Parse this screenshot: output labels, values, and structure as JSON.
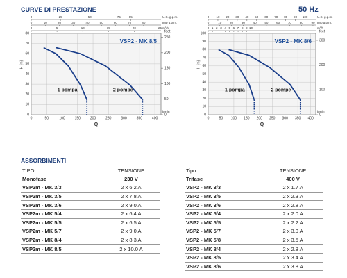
{
  "header": {
    "title": "CURVE DI PRESTAZIONE",
    "frequency": "50 Hz"
  },
  "chart_data": [
    {
      "type": "line",
      "title": "VSP2 - MK 8/5",
      "xlabel": "Q",
      "xunit": "l/min",
      "ylabel": "H (m)",
      "y2label": "feet",
      "xlim": [
        0,
        420
      ],
      "xticks": [
        0,
        50,
        100,
        150,
        200,
        250,
        300,
        350,
        400
      ],
      "ylim": [
        0,
        80
      ],
      "yticks": [
        0,
        10,
        20,
        30,
        40,
        50,
        60,
        70,
        80
      ],
      "y2lim": [
        0,
        262.5
      ],
      "y2ticks": [
        0,
        50,
        100,
        150,
        200,
        250
      ],
      "top_axes": [
        {
          "unit": "U.S. g.p.m.",
          "lim": [
            0,
            111
          ],
          "ticks": [
            0,
            25,
            50,
            75,
            85
          ]
        },
        {
          "unit": "Imp g.p.m.",
          "lim": [
            0,
            92.4
          ],
          "ticks": [
            0,
            10,
            20,
            30,
            40,
            50,
            60,
            70,
            80
          ]
        },
        {
          "unit": "m³/h",
          "lim": [
            0,
            25.2
          ],
          "ticks": [
            0,
            5,
            10,
            15,
            20,
            25
          ]
        }
      ],
      "grid": true,
      "series": [
        {
          "name": "1 pompa",
          "color": "#1b3f8b",
          "x": [
            40,
            80,
            120,
            160,
            180
          ],
          "values": [
            66,
            60,
            48,
            29,
            15
          ]
        },
        {
          "name": "2 pompe",
          "color": "#1b3f8b",
          "x": [
            80,
            160,
            240,
            320,
            360
          ],
          "values": [
            66,
            60,
            48,
            29,
            15
          ]
        }
      ]
    },
    {
      "type": "line",
      "title": "VSP2 - MK 8/6",
      "xlabel": "Q",
      "xunit": "l/min",
      "ylabel": "H (m)",
      "y2label": "feet",
      "xlim": [
        0,
        420
      ],
      "xticks": [
        0,
        50,
        100,
        150,
        200,
        250,
        300,
        350,
        400
      ],
      "ylim": [
        0,
        100
      ],
      "yticks": [
        0,
        10,
        20,
        30,
        40,
        50,
        60,
        70,
        80,
        90,
        100
      ],
      "y2lim": [
        0,
        328
      ],
      "y2ticks": [
        0,
        100,
        200,
        300
      ],
      "top_axes": [
        {
          "unit": "U.S. g.p.m.",
          "lim": [
            0,
            111
          ],
          "ticks": [
            0,
            10,
            20,
            30,
            40,
            50,
            60,
            70,
            80,
            90,
            100
          ]
        },
        {
          "unit": "Imp g.p.m.",
          "lim": [
            0,
            92.4
          ],
          "ticks": [
            0,
            10,
            20,
            30,
            40,
            50,
            60,
            70,
            80,
            90
          ]
        },
        {
          "unit": "m³/h",
          "lim": [
            0,
            25.2
          ],
          "ticks": [
            0,
            1,
            2,
            3,
            4,
            5,
            6,
            7,
            8,
            9,
            10
          ]
        }
      ],
      "grid": true,
      "series": [
        {
          "name": "1 pompa",
          "color": "#1b3f8b",
          "x": [
            40,
            80,
            120,
            160,
            180
          ],
          "values": [
            80,
            73,
            58,
            37,
            18
          ]
        },
        {
          "name": "2 pompe",
          "color": "#1b3f8b",
          "x": [
            80,
            160,
            240,
            320,
            360
          ],
          "values": [
            80,
            73,
            58,
            37,
            18
          ]
        }
      ]
    }
  ],
  "absorption": {
    "title": "ASSORBIMENTI",
    "tables": [
      {
        "columns": [
          "TIPO",
          "TENSIONE"
        ],
        "subheader": [
          "Monofase",
          "230 V"
        ],
        "rows": [
          [
            "VSP2m - MK 3/3",
            "2 x 6.2 A"
          ],
          [
            "VSP2m - MK 3/5",
            "2 x 7.8 A"
          ],
          [
            "VSP2m - MK 3/6",
            "2 x 9.0 A"
          ],
          [
            "VSP2m - MK 5/4",
            "2 x 6.4 A"
          ],
          [
            "VSP2m - MK 5/5",
            "2 x 6.5 A"
          ],
          [
            "VSP2m - MK 5/7",
            "2 x 9.0 A"
          ],
          [
            "VSP2m - MK 8/4",
            "2 x 8.3 A"
          ],
          [
            "VSP2m - MK 8/5",
            "2 x 10.0 A"
          ]
        ]
      },
      {
        "columns": [
          "Tipo",
          "TENSIONE"
        ],
        "subheader": [
          "Trifase",
          "400 V"
        ],
        "rows": [
          [
            "VSP2 - MK 3/3",
            "2 x 1.7 A"
          ],
          [
            "VSP2 - MK 3/5",
            "2 x 2.3 A"
          ],
          [
            "VSP2 - MK 3/6",
            "2 x 2.8 A"
          ],
          [
            "VSP2 - MK 5/4",
            "2 x 2.0 A"
          ],
          [
            "VSP2 - MK 5/5",
            "2 x 2.2 A"
          ],
          [
            "VSP2 - MK 5/7",
            "2 x 3.0 A"
          ],
          [
            "VSP2 - MK 5/8",
            "2 x 3.5 A"
          ],
          [
            "VSP2 - MK 8/4",
            "2 x 2.8 A"
          ],
          [
            "VSP2 - MK 8/5",
            "2 x 3.4 A"
          ],
          [
            "VSP2 - MK 8/6",
            "2 x 3.8 A"
          ]
        ]
      }
    ]
  }
}
